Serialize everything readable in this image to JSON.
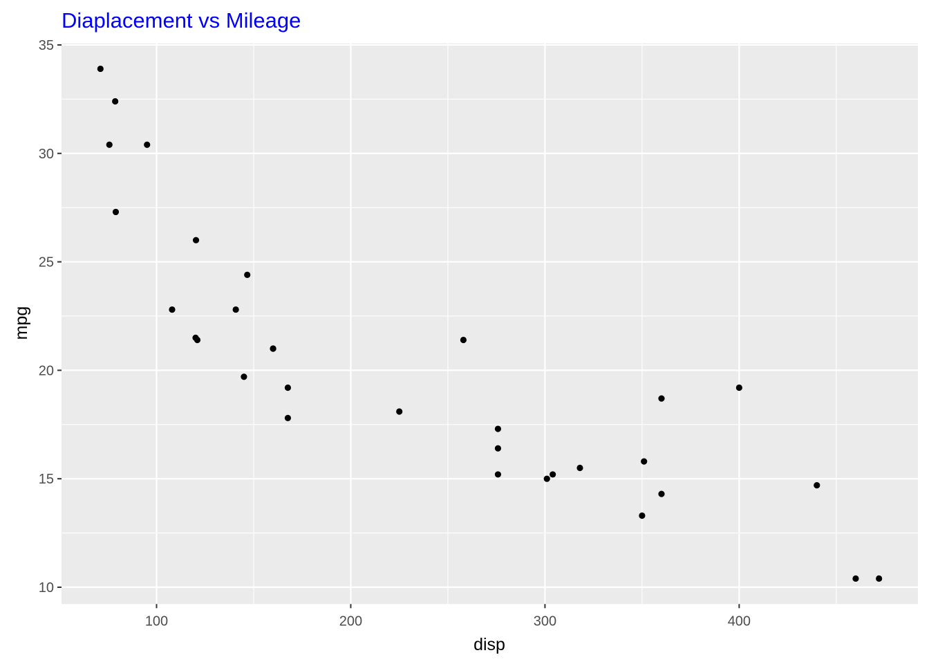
{
  "chart_data": {
    "type": "scatter",
    "title": "Diaplacement vs Mileage",
    "title_color": "#0000FF",
    "xlabel": "disp",
    "ylabel": "mpg",
    "xlim": [
      51.06,
      492.05
    ],
    "ylim": [
      9.225,
      35.075
    ],
    "xticks": [
      100,
      200,
      300,
      400
    ],
    "xtick_labels": [
      "100",
      "200",
      "300",
      "400"
    ],
    "yticks": [
      10,
      15,
      20,
      25,
      30,
      35
    ],
    "ytick_labels": [
      "10",
      "15",
      "20",
      "25",
      "30",
      "35"
    ],
    "grid": true,
    "panel_background": "#EBEBEB",
    "point_color": "#000000",
    "points": [
      [
        160,
        21.0
      ],
      [
        160,
        21.0
      ],
      [
        108,
        22.8
      ],
      [
        258,
        21.4
      ],
      [
        360,
        18.7
      ],
      [
        225,
        18.1
      ],
      [
        360,
        14.3
      ],
      [
        146.7,
        24.4
      ],
      [
        140.8,
        22.8
      ],
      [
        167.6,
        19.2
      ],
      [
        167.6,
        17.8
      ],
      [
        275.8,
        16.4
      ],
      [
        275.8,
        17.3
      ],
      [
        275.8,
        15.2
      ],
      [
        472,
        10.4
      ],
      [
        460,
        10.4
      ],
      [
        440,
        14.7
      ],
      [
        78.7,
        32.4
      ],
      [
        75.7,
        30.4
      ],
      [
        71.1,
        33.9
      ],
      [
        120.1,
        21.5
      ],
      [
        318,
        15.5
      ],
      [
        304,
        15.2
      ],
      [
        350,
        13.3
      ],
      [
        400,
        19.2
      ],
      [
        79,
        27.3
      ],
      [
        120.3,
        26.0
      ],
      [
        95.1,
        30.4
      ],
      [
        351,
        15.8
      ],
      [
        145,
        19.7
      ],
      [
        301,
        15.0
      ],
      [
        121,
        21.4
      ]
    ]
  }
}
